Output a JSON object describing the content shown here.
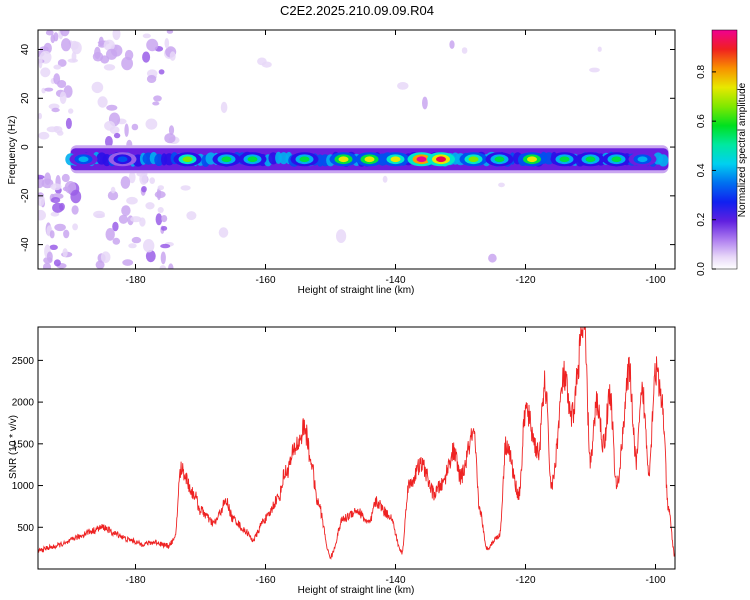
{
  "title": "C2E2.2025.210.09.09.R04",
  "chart_data": [
    {
      "type": "heatmap",
      "xlabel": "Height of straight line (km)",
      "ylabel": "Frequency (Hz)",
      "xlim": [
        -195,
        -97
      ],
      "ylim": [
        -50,
        48
      ],
      "x_ticks": [
        -180,
        -160,
        -140,
        -120,
        -100
      ],
      "y_ticks": [
        -40,
        -20,
        0,
        20,
        40
      ],
      "colorbar": {
        "label": "Normalized spectral amplitude",
        "range": [
          0,
          0.97
        ],
        "ticks": [
          0.0,
          0.2,
          0.4,
          0.6,
          0.8
        ],
        "colormap": [
          "#ffffff",
          "#e8d8f8",
          "#c9a6f0",
          "#9a5ee8",
          "#6a1ee0",
          "#2a10e8",
          "#0050f0",
          "#00b0f0",
          "#00e8c8",
          "#00e040",
          "#80e800",
          "#e8e800",
          "#f8a000",
          "#f04000",
          "#f00050",
          "#f00090"
        ]
      },
      "band": {
        "center_freq_hz": -5,
        "width_hz": 9,
        "peaks": [
          {
            "x": -188,
            "amp": 0.45
          },
          {
            "x": -182,
            "amp": 0.38
          },
          {
            "x": -172,
            "amp": 0.62
          },
          {
            "x": -166,
            "amp": 0.58
          },
          {
            "x": -162,
            "amp": 0.55
          },
          {
            "x": -154,
            "amp": 0.6
          },
          {
            "x": -148,
            "amp": 0.7
          },
          {
            "x": -144,
            "amp": 0.72
          },
          {
            "x": -140,
            "amp": 0.68
          },
          {
            "x": -136,
            "amp": 0.95
          },
          {
            "x": -133,
            "amp": 0.9
          },
          {
            "x": -128,
            "amp": 0.65
          },
          {
            "x": -124,
            "amp": 0.55
          },
          {
            "x": -119,
            "amp": 0.7
          },
          {
            "x": -114,
            "amp": 0.6
          },
          {
            "x": -110,
            "amp": 0.55
          },
          {
            "x": -106,
            "amp": 0.58
          },
          {
            "x": -102,
            "amp": 0.45
          }
        ]
      }
    },
    {
      "type": "line",
      "xlabel": "Height of straight line (km)",
      "ylabel": "SNR (10 * v/v)",
      "xlim": [
        -195,
        -97
      ],
      "ylim": [
        0,
        2900
      ],
      "x_ticks": [
        -180,
        -160,
        -140,
        -120,
        -100
      ],
      "y_ticks": [
        500,
        1000,
        1500,
        2000,
        2500
      ],
      "color": "#ee2222",
      "series": [
        {
          "x": [
            -195,
            -193,
            -191,
            -189,
            -187,
            -185,
            -183,
            -181,
            -179,
            -177,
            -175,
            -174,
            -173,
            -171,
            -170,
            -168,
            -166,
            -165,
            -163,
            -162,
            -160,
            -158,
            -157,
            -155,
            -154,
            -153,
            -152,
            -150,
            -148,
            -146,
            -144,
            -143,
            -141,
            -139,
            -138,
            -136,
            -134,
            -133,
            -131,
            -130,
            -128,
            -127,
            -126,
            -124,
            -123,
            -121,
            -120,
            -118,
            -117,
            -116,
            -114,
            -113,
            -111,
            -110,
            -109,
            -108,
            -107,
            -106,
            -104,
            -103,
            -102,
            -101,
            -100,
            -99,
            -98,
            -97
          ],
          "y": [
            220,
            260,
            300,
            380,
            450,
            500,
            420,
            350,
            300,
            320,
            280,
            350,
            1200,
            900,
            700,
            550,
            800,
            600,
            450,
            350,
            600,
            850,
            1150,
            1500,
            1700,
            1300,
            800,
            150,
            600,
            700,
            550,
            800,
            650,
            200,
            1000,
            1250,
            900,
            1000,
            1400,
            1100,
            1600,
            700,
            250,
            400,
            1500,
            900,
            1900,
            1400,
            2200,
            1000,
            2300,
            1800,
            2900,
            1300,
            2000,
            1500,
            2100,
            1000,
            2350,
            1300,
            2100,
            1200,
            2400,
            2000,
            700,
            150
          ]
        }
      ]
    }
  ]
}
